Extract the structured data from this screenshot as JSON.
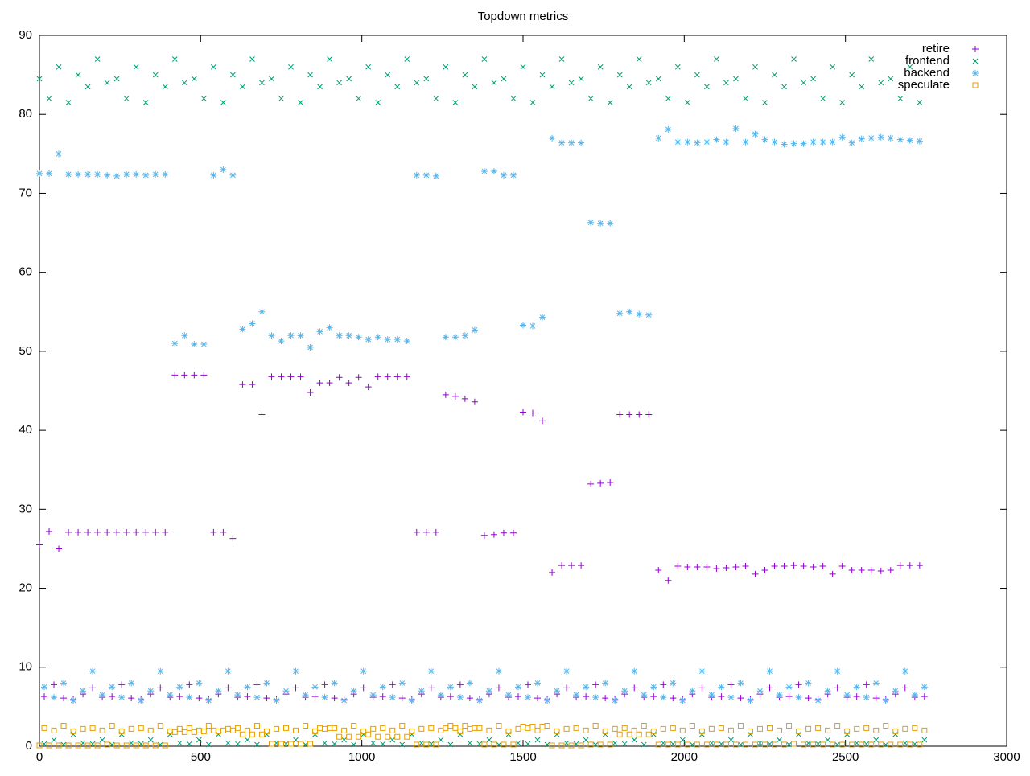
{
  "chart_data": {
    "type": "scatter",
    "title": "Topdown metrics",
    "xlim": [
      0,
      3000
    ],
    "xticks": [
      0,
      500,
      1000,
      1500,
      2000,
      2500,
      3000
    ],
    "ylim": [
      0,
      90
    ],
    "yticks": [
      0,
      10,
      20,
      30,
      40,
      50,
      60,
      70,
      80,
      90
    ],
    "grid": false,
    "legend": "top-right",
    "x": [
      0,
      15,
      30,
      45,
      60,
      75,
      90,
      105,
      120,
      135,
      150,
      165,
      180,
      195,
      210,
      225,
      240,
      255,
      270,
      285,
      300,
      315,
      330,
      345,
      360,
      375,
      390,
      405,
      420,
      435,
      450,
      465,
      480,
      495,
      510,
      525,
      540,
      555,
      570,
      585,
      600,
      615,
      630,
      645,
      660,
      675,
      690,
      705,
      720,
      735,
      750,
      765,
      780,
      795,
      810,
      825,
      840,
      855,
      870,
      885,
      900,
      915,
      930,
      945,
      960,
      975,
      990,
      1005,
      1020,
      1035,
      1050,
      1065,
      1080,
      1095,
      1110,
      1125,
      1140,
      1155,
      1170,
      1185,
      1200,
      1215,
      1230,
      1245,
      1260,
      1275,
      1290,
      1305,
      1320,
      1335,
      1350,
      1365,
      1380,
      1395,
      1410,
      1425,
      1440,
      1455,
      1470,
      1485,
      1500,
      1515,
      1530,
      1545,
      1560,
      1575,
      1590,
      1605,
      1620,
      1635,
      1650,
      1665,
      1680,
      1695,
      1710,
      1725,
      1740,
      1755,
      1770,
      1785,
      1800,
      1815,
      1830,
      1845,
      1860,
      1875,
      1890,
      1905,
      1920,
      1935,
      1950,
      1965,
      1980,
      1995,
      2010,
      2025,
      2040,
      2055,
      2070,
      2085,
      2100,
      2115,
      2130,
      2145,
      2160,
      2175,
      2190,
      2205,
      2220,
      2235,
      2250,
      2265,
      2280,
      2295,
      2310,
      2325,
      2340,
      2355,
      2370,
      2385,
      2400,
      2415,
      2430,
      2445,
      2460,
      2475,
      2490,
      2505,
      2520,
      2535,
      2550,
      2565,
      2580,
      2595,
      2610,
      2625,
      2640,
      2655,
      2670,
      2685,
      2700,
      2715,
      2730,
      2745
    ],
    "series": [
      {
        "name": "retire",
        "color": "#9400d3",
        "marker": "plus",
        "values": [
          25.5,
          6.3,
          27.2,
          7.8,
          25,
          6.1,
          27.1,
          5.9,
          27.1,
          6.6,
          27.1,
          7.4,
          27.1,
          6.2,
          27.1,
          6.3,
          27.1,
          7.8,
          27.1,
          6.1,
          27.1,
          5.9,
          27.1,
          6.6,
          27.1,
          7.4,
          27.1,
          6.2,
          47,
          6.3,
          47,
          7.8,
          47,
          6.1,
          47,
          5.9,
          27.1,
          6.6,
          27.1,
          7.4,
          26.3,
          6.2,
          45.8,
          6.3,
          45.8,
          7.8,
          42,
          6.1,
          46.8,
          5.9,
          46.8,
          6.6,
          46.8,
          7.4,
          46.8,
          6.2,
          44.8,
          6.3,
          46,
          7.8,
          46,
          6.1,
          46.7,
          5.9,
          46,
          6.6,
          46.7,
          7.4,
          45.5,
          6.2,
          46.8,
          6.3,
          46.8,
          7.8,
          46.8,
          6.1,
          46.8,
          5.9,
          27.1,
          6.6,
          27.1,
          7.4,
          27.1,
          6.2,
          44.5,
          6.3,
          44.3,
          7.8,
          44,
          6.1,
          43.6,
          5.9,
          26.7,
          6.6,
          26.8,
          7.4,
          27,
          6.2,
          27,
          6.3,
          42.3,
          7.8,
          42.2,
          6.1,
          41.2,
          5.9,
          22,
          6.6,
          22.9,
          7.4,
          22.9,
          6.2,
          22.9,
          6.3,
          33.2,
          7.8,
          33.3,
          6.1,
          33.4,
          5.9,
          42,
          6.6,
          42,
          7.4,
          42,
          6.2,
          42,
          6.3,
          22.3,
          7.8,
          21,
          6.1,
          22.8,
          5.9,
          22.7,
          6.6,
          22.7,
          7.4,
          22.7,
          6.2,
          22.5,
          6.3,
          22.6,
          7.8,
          22.7,
          6.1,
          22.8,
          5.9,
          21.8,
          6.6,
          22.3,
          7.4,
          22.8,
          6.2,
          22.8,
          6.3,
          22.9,
          7.8,
          22.8,
          6.1,
          22.7,
          5.9,
          22.8,
          6.6,
          21.8,
          7.4,
          22.8,
          6.2,
          22.3,
          6.3,
          22.3,
          7.8,
          22.3,
          6.1,
          22.2,
          5.9,
          22.3,
          6.6,
          22.9,
          7.4,
          22.9,
          6.2,
          22.9,
          6.3
        ]
      },
      {
        "name": "frontend",
        "color": "#009e73",
        "marker": "cross",
        "values": [
          84.5,
          0.3,
          82,
          0.8,
          86,
          0.2,
          81.5,
          1.5,
          85,
          0.4,
          83.5,
          0.3,
          87,
          0.8,
          84,
          0.2,
          84.5,
          1.5,
          82,
          0.4,
          86,
          0.3,
          81.5,
          0.8,
          85,
          0.2,
          83.5,
          1.5,
          87,
          0.4,
          84,
          0.3,
          84.5,
          0.8,
          82,
          0.2,
          86,
          1.5,
          81.5,
          0.4,
          85,
          0.3,
          83.5,
          0.8,
          87,
          0.2,
          84,
          1.5,
          84.5,
          0.4,
          82,
          0.3,
          86,
          0.8,
          81.5,
          0.2,
          85,
          1.5,
          83.5,
          0.4,
          87,
          0.3,
          84,
          0.8,
          84.5,
          0.2,
          82,
          1.5,
          86,
          0.4,
          81.5,
          0.3,
          85,
          0.8,
          83.5,
          0.2,
          87,
          1.5,
          84,
          0.4,
          84.5,
          0.3,
          82,
          0.8,
          86,
          0.2,
          81.5,
          1.5,
          85,
          0.4,
          83.5,
          0.3,
          87,
          0.8,
          84,
          0.2,
          84.5,
          1.5,
          82,
          0.4,
          86,
          0.3,
          81.5,
          0.8,
          85,
          0.2,
          83.5,
          1.5,
          87,
          0.4,
          84,
          0.3,
          84.5,
          0.8,
          82,
          0.2,
          86,
          1.5,
          81.5,
          0.4,
          85,
          0.3,
          83.5,
          0.8,
          87,
          0.2,
          84,
          1.5,
          84.5,
          0.4,
          82,
          0.3,
          86,
          0.8,
          81.5,
          0.2,
          85,
          1.5,
          83.5,
          0.4,
          87,
          0.3,
          84,
          0.8,
          84.5,
          0.2,
          82,
          1.5,
          86,
          0.4,
          81.5,
          0.3,
          85,
          0.8,
          83.5,
          0.2,
          87,
          1.5,
          84,
          0.4,
          84.5,
          0.3,
          82,
          0.8,
          86,
          0.2,
          81.5,
          1.5,
          85,
          0.4,
          83.5,
          0.3,
          87,
          0.8,
          84,
          0.2,
          84.5,
          1.5,
          82,
          0.4,
          86,
          0.3,
          81.5,
          0.8
        ]
      },
      {
        "name": "backend",
        "color": "#56b4e9",
        "marker": "star",
        "values": [
          72.5,
          7.5,
          72.5,
          6.2,
          75,
          8,
          72.4,
          5.8,
          72.4,
          7,
          72.4,
          9.5,
          72.4,
          6.5,
          72.3,
          7.5,
          72.2,
          6.2,
          72.4,
          8,
          72.4,
          5.8,
          72.3,
          7,
          72.4,
          9.5,
          72.4,
          6.5,
          51,
          7.5,
          52,
          6.2,
          50.9,
          8,
          50.9,
          5.8,
          72.3,
          7,
          73,
          9.5,
          72.3,
          6.5,
          52.8,
          7.5,
          53.5,
          6.2,
          55,
          8,
          52,
          5.8,
          51.3,
          7,
          52,
          9.5,
          52,
          6.5,
          50.5,
          7.5,
          52.5,
          6.2,
          53,
          8,
          52,
          5.8,
          52,
          7,
          51.8,
          9.5,
          51.5,
          6.5,
          51.8,
          7.5,
          51.5,
          6.2,
          51.5,
          8,
          51.3,
          5.8,
          72.3,
          7,
          72.3,
          9.5,
          72.2,
          6.5,
          51.8,
          7.5,
          51.8,
          6.2,
          52,
          8,
          52.7,
          5.8,
          72.8,
          7,
          72.8,
          9.5,
          72.3,
          6.5,
          72.3,
          7.5,
          53.3,
          6.2,
          53.2,
          8,
          54.3,
          5.8,
          77,
          7,
          76.4,
          9.5,
          76.4,
          6.5,
          76.4,
          7.5,
          66.3,
          6.2,
          66.2,
          8,
          66.2,
          5.8,
          54.8,
          7,
          55,
          9.5,
          54.7,
          6.5,
          54.6,
          7.5,
          77,
          6.2,
          78.1,
          8,
          76.5,
          5.8,
          76.5,
          7,
          76.4,
          9.5,
          76.5,
          6.5,
          76.8,
          7.5,
          76.5,
          6.2,
          78.2,
          8,
          76.5,
          5.8,
          77.5,
          7,
          76.8,
          9.5,
          76.5,
          6.5,
          76.2,
          7.5,
          76.3,
          6.2,
          76.3,
          8,
          76.5,
          5.8,
          76.5,
          7,
          76.5,
          9.5,
          77.1,
          6.5,
          76.4,
          7.5,
          76.9,
          6.2,
          77,
          8,
          77.1,
          5.8,
          77,
          7,
          76.8,
          9.5,
          76.7,
          6.5,
          76.6,
          7.5
        ]
      },
      {
        "name": "speculate",
        "color": "#e69f00",
        "marker": "square",
        "values": [
          0.1,
          2.3,
          0.1,
          2,
          0.1,
          2.6,
          0.1,
          1.9,
          0.1,
          2.2,
          0.1,
          2.3,
          0.1,
          2,
          0.2,
          2.6,
          0.1,
          1.9,
          0.1,
          2.2,
          0.1,
          2.3,
          0.1,
          2,
          0.1,
          2.6,
          0.1,
          1.9,
          1.8,
          2.2,
          1.8,
          2.3,
          1.8,
          2,
          1.9,
          2.6,
          2,
          1.9,
          2,
          2.2,
          2,
          2.3,
          1.5,
          2,
          1.5,
          2.6,
          1.5,
          1.9,
          0.3,
          2.2,
          0.3,
          2.3,
          0.3,
          2,
          0.3,
          2.6,
          0.3,
          1.9,
          2.3,
          2.2,
          2.3,
          2.3,
          1.2,
          2,
          1.2,
          2.6,
          1.2,
          1.9,
          1.5,
          2.2,
          1.2,
          2.3,
          1.2,
          2,
          1.2,
          2.6,
          1.2,
          1.9,
          0.2,
          2.2,
          0.2,
          2.3,
          0.2,
          2,
          2.3,
          2.6,
          2.3,
          1.9,
          2.6,
          2.2,
          2.3,
          2.3,
          0.2,
          2,
          0.2,
          2.6,
          0.2,
          1.9,
          0.2,
          2.2,
          2.5,
          2.3,
          2.5,
          2,
          2.5,
          2.6,
          0.1,
          1.9,
          0.1,
          2.2,
          0.1,
          2.3,
          0.1,
          2,
          0.2,
          2.6,
          0.2,
          1.9,
          0.2,
          2.2,
          1.5,
          2.3,
          1.5,
          2,
          1.5,
          2.6,
          1.5,
          1.9,
          0.2,
          2.2,
          0.2,
          2.3,
          0.2,
          2,
          0.2,
          2.6,
          0.2,
          1.9,
          0.2,
          2.2,
          0.2,
          2.3,
          0.2,
          2,
          0.2,
          2.6,
          0.2,
          1.9,
          0.2,
          2.2,
          0.2,
          2.3,
          0.2,
          2,
          0.2,
          2.6,
          0.3,
          1.9,
          0.2,
          2.2,
          0.2,
          2.3,
          0.2,
          2,
          0.2,
          2.6,
          0.2,
          1.9,
          0.2,
          2.2,
          0.2,
          2.3,
          0.2,
          2,
          0.2,
          2.6,
          0.2,
          1.9,
          0.2,
          2.2,
          0.2,
          2.3,
          0.2,
          2
        ]
      }
    ]
  }
}
